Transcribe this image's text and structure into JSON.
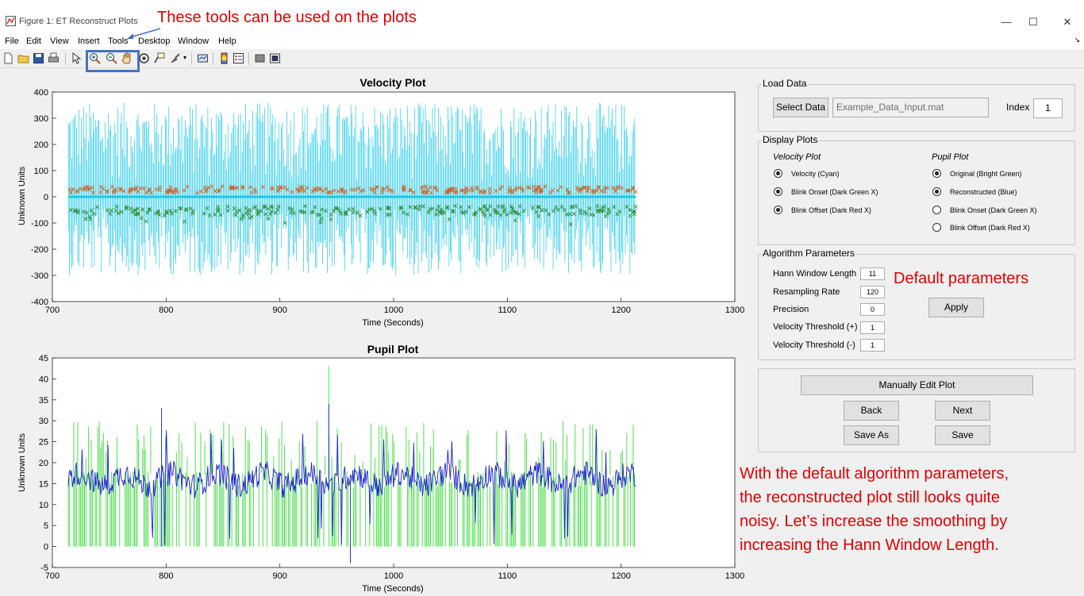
{
  "window": {
    "title": "Figure 1: ET Reconstruct Plots",
    "minimize": "—",
    "maximize": "☐",
    "close": "✕"
  },
  "menu": [
    "File",
    "Edit",
    "View",
    "Insert",
    "Tools",
    "Desktop",
    "Window",
    "Help"
  ],
  "toolbar_icons": [
    "new-figure-icon",
    "open-file-icon",
    "save-icon",
    "print-icon",
    "pointer-icon",
    "zoom-in-icon",
    "zoom-out-icon",
    "pan-hand-icon",
    "rotate-icon",
    "data-cursor-icon",
    "brush-icon",
    "link-plot-icon",
    "colorbar-icon",
    "legend-icon",
    "hide-plot-tools-icon",
    "show-plot-tools-icon"
  ],
  "annotations": {
    "tools": "These tools can be used on the plots",
    "defaults": "Default parameters",
    "noisy_lines": [
      "With the default algorithm parameters,",
      "the reconstructed plot still looks quite",
      "noisy. Let’s increase the smoothing by",
      "increasing the Hann Window Length."
    ]
  },
  "load_data": {
    "title": "Load Data",
    "select_button": "Select Data",
    "filename": "Example_Data_Input.mat",
    "index_label": "Index",
    "index_value": "1"
  },
  "display_plots": {
    "title": "Display Plots",
    "velocity_header": "Velocity Plot",
    "pupil_header": "Pupil Plot",
    "velocity_options": [
      {
        "label": "Velocity (Cyan)",
        "selected": true
      },
      {
        "label": "Blink Onset (Dark Green X)",
        "selected": true
      },
      {
        "label": "Blink Offset (Dark Red X)",
        "selected": true
      }
    ],
    "pupil_options": [
      {
        "label": "Original (Bright Green)",
        "selected": true
      },
      {
        "label": "Reconstructed (Blue)",
        "selected": true
      },
      {
        "label": "Blink Onset (Dark Green X)",
        "selected": false
      },
      {
        "label": "Blink Offset (Dark Red X)",
        "selected": false
      }
    ]
  },
  "algorithm": {
    "title": "Algorithm Parameters",
    "params": [
      {
        "label": "Hann Window Length",
        "value": "11"
      },
      {
        "label": "Resampling Rate",
        "value": "120"
      },
      {
        "label": "Precision",
        "value": "0"
      },
      {
        "label": "Velocity Threshold (+)",
        "value": "1"
      },
      {
        "label": "Velocity Threshold (-)",
        "value": "1"
      }
    ],
    "apply": "Apply"
  },
  "actions": {
    "manual_edit": "Manually Edit Plot",
    "back": "Back",
    "next": "Next",
    "save_as": "Save As",
    "save": "Save"
  },
  "chart_data": [
    {
      "type": "line",
      "title": "Velocity Plot",
      "xlabel": "Time (Seconds)",
      "ylabel": "Unknown Units",
      "xlim": [
        700,
        1300
      ],
      "ylim": [
        -400,
        400
      ],
      "xticks": [
        700,
        800,
        900,
        1000,
        1100,
        1200,
        1300
      ],
      "yticks": [
        -400,
        -300,
        -200,
        -100,
        0,
        100,
        200,
        300,
        400
      ],
      "data_range_x": [
        714,
        1213
      ],
      "series": [
        {
          "name": "Velocity (Cyan)",
          "color": "#1ec8e8",
          "style": "spikes",
          "typical_peak_range": [
            -330,
            410
          ],
          "baseline": 0
        },
        {
          "name": "Blink Onset (Dark Green X)",
          "color": "#2e8b2e",
          "style": "x-markers",
          "typical_y": -50
        },
        {
          "name": "Blink Offset (Dark Red X)",
          "color": "#c8642a",
          "style": "x-markers",
          "typical_y": 30
        }
      ]
    },
    {
      "type": "line",
      "title": "Pupil Plot",
      "xlabel": "Time (Seconds)",
      "ylabel": "Unknown Units",
      "xlim": [
        700,
        1300
      ],
      "ylim": [
        -5,
        45
      ],
      "xticks": [
        700,
        800,
        900,
        1000,
        1100,
        1200,
        1300
      ],
      "yticks": [
        -5,
        0,
        5,
        10,
        15,
        20,
        25,
        30,
        35,
        40,
        45
      ],
      "data_range_x": [
        714,
        1213
      ],
      "series": [
        {
          "name": "Original (Bright Green)",
          "color": "#3ddc3d",
          "style": "spikes-to-zero",
          "typical_level": 16,
          "max": 43
        },
        {
          "name": "Reconstructed (Blue)",
          "color": "#1f1fd0",
          "style": "line",
          "typical_level": 16,
          "max": 33,
          "min": -4
        }
      ]
    }
  ]
}
